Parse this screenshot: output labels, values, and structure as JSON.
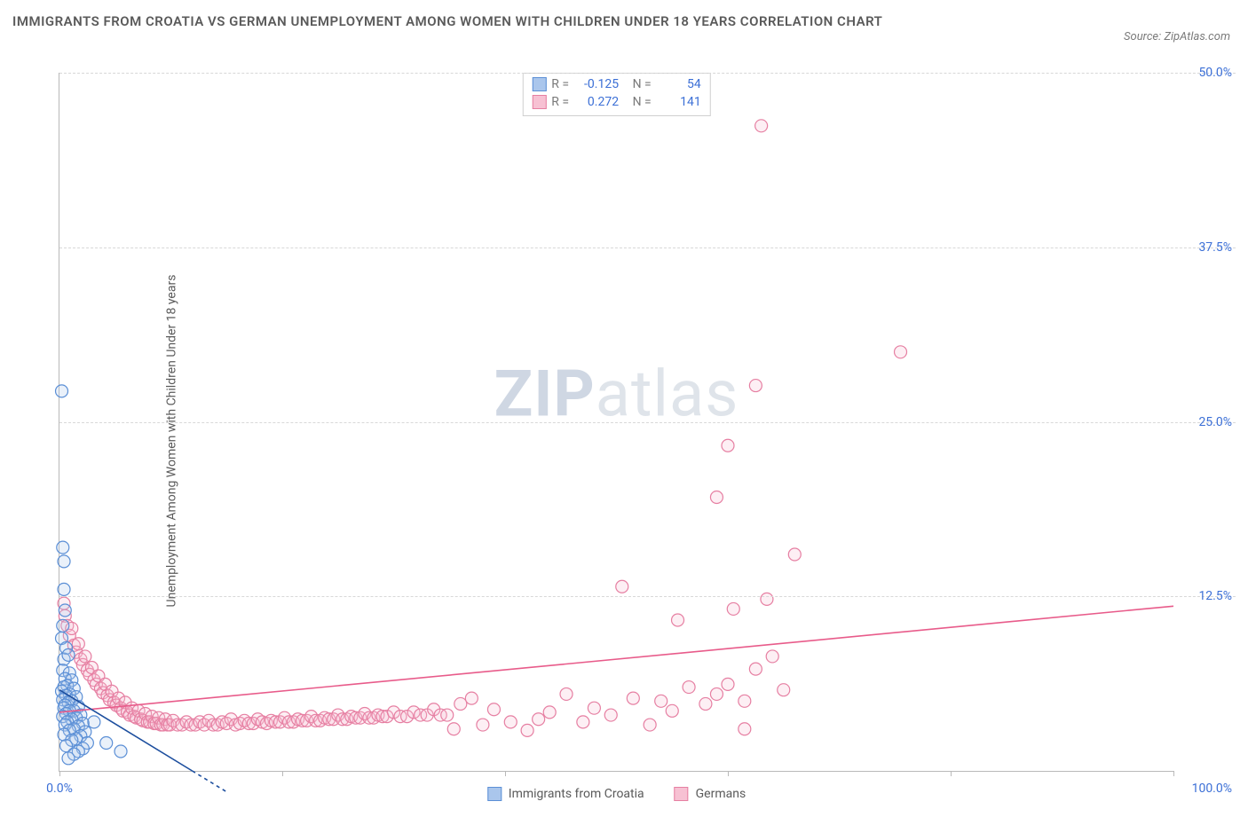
{
  "title": "IMMIGRANTS FROM CROATIA VS GERMAN UNEMPLOYMENT AMONG WOMEN WITH CHILDREN UNDER 18 YEARS CORRELATION CHART",
  "source_prefix": "Source: ",
  "source_name": "ZipAtlas.com",
  "y_axis_label": "Unemployment Among Women with Children Under 18 years",
  "watermark_a": "ZIP",
  "watermark_b": "atlas",
  "chart": {
    "type": "scatter",
    "xlim": [
      0,
      100
    ],
    "ylim": [
      0,
      50
    ],
    "x_ticks": [
      0,
      20,
      40,
      60,
      80,
      100
    ],
    "x_tick_labels": {
      "0": "0.0%",
      "100": "100.0%"
    },
    "y_ticks": [
      12.5,
      25.0,
      37.5,
      50.0
    ],
    "y_tick_labels": [
      "12.5%",
      "25.0%",
      "37.5%",
      "50.0%"
    ],
    "grid_color": "#d8d8d8",
    "axis_color": "#b9b9b9",
    "background_color": "#ffffff",
    "marker_radius": 7,
    "marker_stroke_width": 1.2,
    "marker_fill_opacity": 0.25,
    "trend_line_width": 1.6,
    "label_color": "#3b6fd6",
    "text_color": "#5a5a5a"
  },
  "series": {
    "blue": {
      "name": "Immigrants from Croatia",
      "stroke": "#5b8fd6",
      "fill": "#aac6ec",
      "line_color": "#1c4e9e",
      "R": "-0.125",
      "N": "54",
      "trend": {
        "x1": 0,
        "y1": 5.8,
        "x2": 15,
        "y2": -1.5
      },
      "points": [
        [
          0.2,
          27.2
        ],
        [
          0.3,
          16.0
        ],
        [
          0.4,
          15.0
        ],
        [
          0.4,
          13.0
        ],
        [
          0.5,
          11.5
        ],
        [
          0.3,
          10.4
        ],
        [
          0.2,
          9.5
        ],
        [
          0.6,
          8.8
        ],
        [
          0.4,
          8.0
        ],
        [
          0.8,
          8.3
        ],
        [
          0.3,
          7.2
        ],
        [
          0.9,
          7.0
        ],
        [
          0.5,
          6.6
        ],
        [
          1.1,
          6.5
        ],
        [
          0.7,
          6.1
        ],
        [
          0.4,
          6.0
        ],
        [
          1.3,
          5.9
        ],
        [
          0.2,
          5.7
        ],
        [
          0.9,
          5.5
        ],
        [
          0.6,
          5.4
        ],
        [
          1.5,
          5.3
        ],
        [
          0.3,
          5.1
        ],
        [
          1.1,
          5.0
        ],
        [
          0.8,
          4.9
        ],
        [
          0.5,
          4.7
        ],
        [
          1.7,
          4.6
        ],
        [
          0.4,
          4.5
        ],
        [
          1.3,
          4.3
        ],
        [
          0.9,
          4.3
        ],
        [
          0.6,
          4.1
        ],
        [
          1.9,
          4.0
        ],
        [
          0.3,
          3.9
        ],
        [
          1.5,
          3.8
        ],
        [
          1.1,
          3.7
        ],
        [
          0.7,
          3.5
        ],
        [
          2.1,
          3.4
        ],
        [
          0.5,
          3.3
        ],
        [
          1.7,
          3.2
        ],
        [
          1.3,
          3.0
        ],
        [
          0.9,
          2.9
        ],
        [
          2.3,
          2.8
        ],
        [
          0.4,
          2.6
        ],
        [
          1.9,
          2.5
        ],
        [
          1.5,
          2.3
        ],
        [
          1.1,
          2.2
        ],
        [
          2.5,
          2.0
        ],
        [
          0.6,
          1.8
        ],
        [
          2.1,
          1.6
        ],
        [
          1.7,
          1.4
        ],
        [
          1.3,
          1.2
        ],
        [
          0.8,
          0.9
        ],
        [
          4.2,
          2.0
        ],
        [
          3.1,
          3.5
        ],
        [
          5.5,
          1.4
        ]
      ]
    },
    "pink": {
      "name": "Germans",
      "stroke": "#e67fa2",
      "fill": "#f7c1d3",
      "line_color": "#e85b8a",
      "R": "0.272",
      "N": "141",
      "trend": {
        "x1": 0,
        "y1": 4.2,
        "x2": 100,
        "y2": 11.8
      },
      "points": [
        [
          0.4,
          12.0
        ],
        [
          0.5,
          11.1
        ],
        [
          0.7,
          10.4
        ],
        [
          0.9,
          9.7
        ],
        [
          1.1,
          10.2
        ],
        [
          1.3,
          9.0
        ],
        [
          1.5,
          8.5
        ],
        [
          1.7,
          9.1
        ],
        [
          1.9,
          8.0
        ],
        [
          2.1,
          7.6
        ],
        [
          2.3,
          8.2
        ],
        [
          2.5,
          7.2
        ],
        [
          2.7,
          6.9
        ],
        [
          2.9,
          7.4
        ],
        [
          3.1,
          6.5
        ],
        [
          3.3,
          6.2
        ],
        [
          3.5,
          6.8
        ],
        [
          3.7,
          5.9
        ],
        [
          3.9,
          5.6
        ],
        [
          4.1,
          6.2
        ],
        [
          4.3,
          5.4
        ],
        [
          4.5,
          5.1
        ],
        [
          4.7,
          5.7
        ],
        [
          4.9,
          4.9
        ],
        [
          5.1,
          4.7
        ],
        [
          5.3,
          5.2
        ],
        [
          5.5,
          4.5
        ],
        [
          5.7,
          4.3
        ],
        [
          5.9,
          4.9
        ],
        [
          6.1,
          4.2
        ],
        [
          6.3,
          4.0
        ],
        [
          6.5,
          4.5
        ],
        [
          6.7,
          3.9
        ],
        [
          6.9,
          3.8
        ],
        [
          7.1,
          4.3
        ],
        [
          7.3,
          3.7
        ],
        [
          7.5,
          3.6
        ],
        [
          7.7,
          4.1
        ],
        [
          7.9,
          3.5
        ],
        [
          8.1,
          3.5
        ],
        [
          8.3,
          3.9
        ],
        [
          8.5,
          3.4
        ],
        [
          8.7,
          3.4
        ],
        [
          8.9,
          3.8
        ],
        [
          9.1,
          3.3
        ],
        [
          9.3,
          3.3
        ],
        [
          9.5,
          3.7
        ],
        [
          9.7,
          3.3
        ],
        [
          9.9,
          3.3
        ],
        [
          10.2,
          3.6
        ],
        [
          10.6,
          3.3
        ],
        [
          11.0,
          3.3
        ],
        [
          11.4,
          3.5
        ],
        [
          11.8,
          3.3
        ],
        [
          12.2,
          3.3
        ],
        [
          12.6,
          3.5
        ],
        [
          13.0,
          3.3
        ],
        [
          13.4,
          3.6
        ],
        [
          13.8,
          3.3
        ],
        [
          14.2,
          3.3
        ],
        [
          14.6,
          3.5
        ],
        [
          15.0,
          3.4
        ],
        [
          15.4,
          3.7
        ],
        [
          15.8,
          3.3
        ],
        [
          16.2,
          3.4
        ],
        [
          16.6,
          3.6
        ],
        [
          17.0,
          3.4
        ],
        [
          17.4,
          3.4
        ],
        [
          17.8,
          3.7
        ],
        [
          18.2,
          3.5
        ],
        [
          18.6,
          3.4
        ],
        [
          19.0,
          3.6
        ],
        [
          19.4,
          3.5
        ],
        [
          19.8,
          3.5
        ],
        [
          20.2,
          3.8
        ],
        [
          20.6,
          3.5
        ],
        [
          21.0,
          3.5
        ],
        [
          21.4,
          3.7
        ],
        [
          21.8,
          3.6
        ],
        [
          22.2,
          3.6
        ],
        [
          22.6,
          3.9
        ],
        [
          23.0,
          3.6
        ],
        [
          23.4,
          3.6
        ],
        [
          23.8,
          3.8
        ],
        [
          24.2,
          3.7
        ],
        [
          24.6,
          3.7
        ],
        [
          25.0,
          4.0
        ],
        [
          25.4,
          3.7
        ],
        [
          25.8,
          3.7
        ],
        [
          26.2,
          3.9
        ],
        [
          26.6,
          3.8
        ],
        [
          27.0,
          3.8
        ],
        [
          27.4,
          4.1
        ],
        [
          27.8,
          3.8
        ],
        [
          28.2,
          3.8
        ],
        [
          28.6,
          4.0
        ],
        [
          29.0,
          3.9
        ],
        [
          29.4,
          3.9
        ],
        [
          30.0,
          4.2
        ],
        [
          30.6,
          3.9
        ],
        [
          31.2,
          3.9
        ],
        [
          31.8,
          4.2
        ],
        [
          32.4,
          4.0
        ],
        [
          33.0,
          4.0
        ],
        [
          33.6,
          4.4
        ],
        [
          34.2,
          4.0
        ],
        [
          34.8,
          4.0
        ],
        [
          35.4,
          3.0
        ],
        [
          36.0,
          4.8
        ],
        [
          37.0,
          5.2
        ],
        [
          38.0,
          3.3
        ],
        [
          39.0,
          4.4
        ],
        [
          40.5,
          3.5
        ],
        [
          42.0,
          2.9
        ],
        [
          43.0,
          3.7
        ],
        [
          44.0,
          4.2
        ],
        [
          45.5,
          5.5
        ],
        [
          47.0,
          3.5
        ],
        [
          48.0,
          4.5
        ],
        [
          49.5,
          4.0
        ],
        [
          50.5,
          13.2
        ],
        [
          51.5,
          5.2
        ],
        [
          53.0,
          3.3
        ],
        [
          54.0,
          5.0
        ],
        [
          55.0,
          4.3
        ],
        [
          55.5,
          10.8
        ],
        [
          56.5,
          6.0
        ],
        [
          58.0,
          4.8
        ],
        [
          59.0,
          5.5
        ],
        [
          59.0,
          19.6
        ],
        [
          60.0,
          6.2
        ],
        [
          60.5,
          11.6
        ],
        [
          60.0,
          23.3
        ],
        [
          61.5,
          5.0
        ],
        [
          61.5,
          3.0
        ],
        [
          62.5,
          7.3
        ],
        [
          62.5,
          27.6
        ],
        [
          63.5,
          12.3
        ],
        [
          63.0,
          46.2
        ],
        [
          64.0,
          8.2
        ],
        [
          65.0,
          5.8
        ],
        [
          66.0,
          15.5
        ],
        [
          75.5,
          30.0
        ]
      ]
    }
  },
  "stats_labels": {
    "R": "R =",
    "N": "N ="
  },
  "legend": {
    "blue": "Immigrants from Croatia",
    "pink": "Germans"
  }
}
